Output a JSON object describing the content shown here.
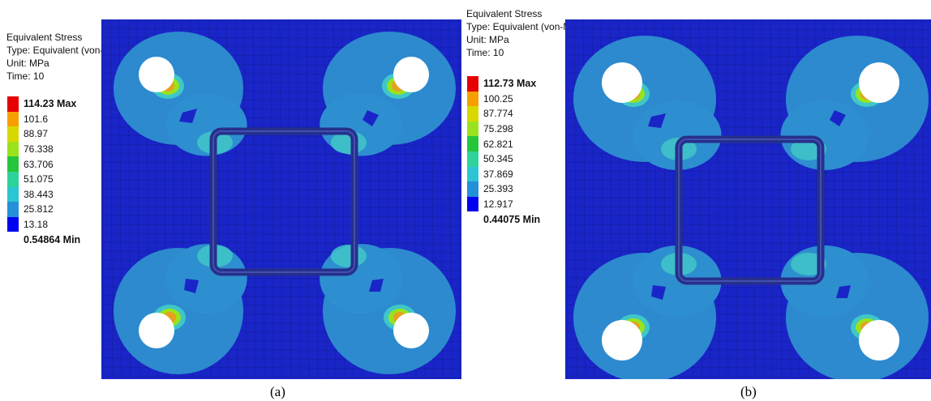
{
  "panels": [
    {
      "id": "a",
      "caption": "(a)",
      "info": {
        "title": "Equivalent Stress",
        "type": "Type: Equivalent (von-Mises) Stress - Top/Bottom",
        "unit": "Unit: MPa",
        "time": "Time: 10"
      },
      "legend": {
        "max_label": "114.23 Max",
        "values": [
          "101.6",
          "88.97",
          "76.338",
          "63.706",
          "51.075",
          "38.443",
          "25.812",
          "13.18"
        ],
        "min_label": "0.54864 Min"
      }
    },
    {
      "id": "b",
      "caption": "(b)",
      "info": {
        "title": "Equivalent Stress",
        "type": "Type: Equivalent (von-Mises) Stress - Top/Bottom",
        "unit": "Unit: MPa",
        "time": "Time: 10"
      },
      "legend": {
        "max_label": "112.73 Max",
        "values": [
          "100.25",
          "87.774",
          "75.298",
          "62.821",
          "50.345",
          "37.869",
          "25.393",
          "12.917"
        ],
        "min_label": "0.44075 Min"
      }
    }
  ],
  "colors": {
    "background": "#1a25c8",
    "contour_levels": [
      "#e60000",
      "#f5a000",
      "#d8d800",
      "#9ae21e",
      "#25c63c",
      "#2ed29b",
      "#2bc5d4",
      "#2390d8",
      "#0000f0"
    ],
    "stress_low": "#2e8fd0",
    "stress_mid": "#3fc7c8",
    "stress_high": "#e7a020",
    "frame": "#26308a",
    "bolt_hole": "#ffffff"
  }
}
